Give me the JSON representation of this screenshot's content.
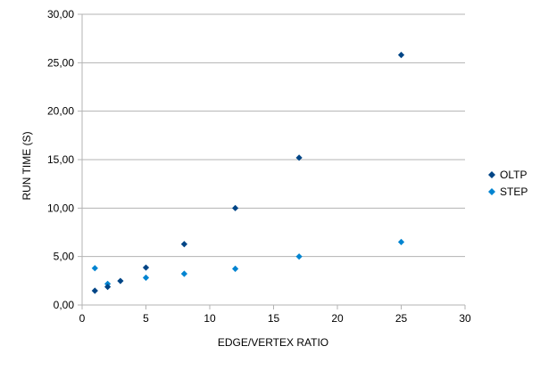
{
  "chart_data": {
    "type": "scatter",
    "title": "",
    "xlabel": "EDGE/VERTEX RATIO",
    "ylabel": "RUN TIME (S)",
    "xlim": [
      0,
      30
    ],
    "ylim": [
      0,
      30
    ],
    "xticks": [
      0,
      5,
      10,
      15,
      20,
      25,
      30
    ],
    "xtick_labels": [
      "0",
      "5",
      "10",
      "15",
      "20",
      "25",
      "30"
    ],
    "yticks": [
      0,
      5,
      10,
      15,
      20,
      25,
      30
    ],
    "ytick_labels": [
      "0,00",
      "5,00",
      "10,00",
      "15,00",
      "20,00",
      "25,00",
      "30,00"
    ],
    "grid": "horizontal",
    "legend_position": "right",
    "marker": "diamond",
    "series": [
      {
        "name": "OLTP",
        "color": "#004586",
        "x": [
          1,
          2,
          3,
          5,
          8,
          12,
          17,
          25
        ],
        "y": [
          1.47,
          1.87,
          2.48,
          3.86,
          6.28,
          10.0,
          15.2,
          25.8
        ]
      },
      {
        "name": "STEP",
        "color": "#0084d1",
        "x": [
          1,
          2,
          5,
          8,
          12,
          17,
          25
        ],
        "y": [
          3.8,
          2.18,
          2.82,
          3.22,
          3.74,
          5.0,
          6.5
        ]
      }
    ]
  }
}
